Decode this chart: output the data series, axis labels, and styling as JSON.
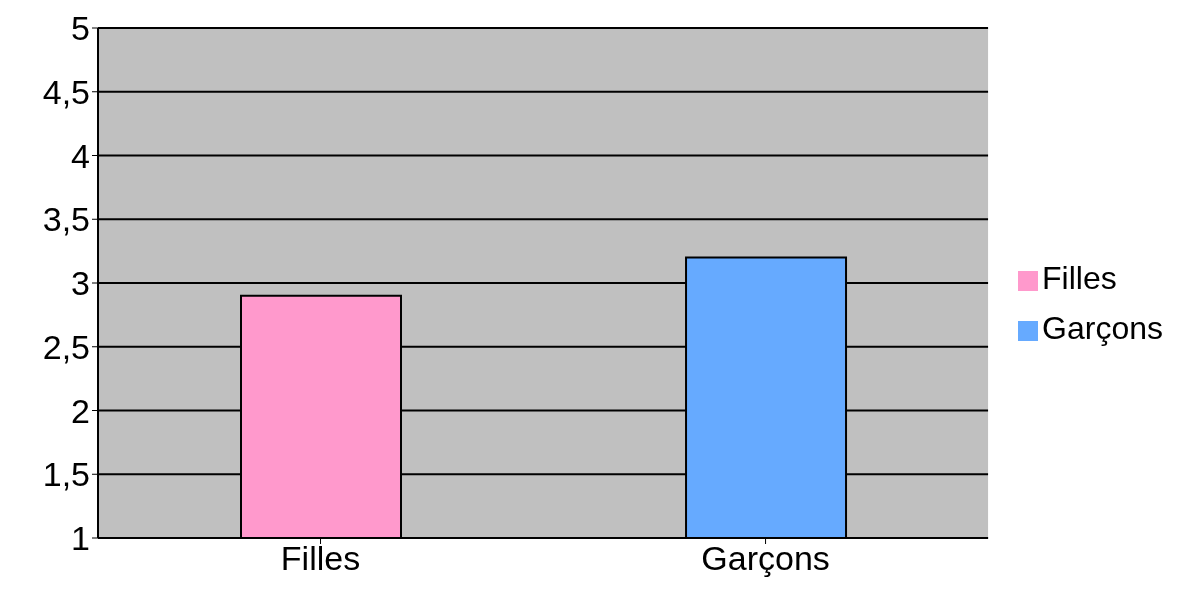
{
  "chart_data": {
    "type": "bar",
    "categories": [
      "Filles",
      "Garçons"
    ],
    "series": [
      {
        "name": "Filles",
        "color": "#ff99cc",
        "values": [
          2.9,
          null
        ]
      },
      {
        "name": "Garçons",
        "color": "#66aaff",
        "values": [
          null,
          3.2
        ]
      }
    ],
    "ylim": [
      1,
      5
    ],
    "yticks": [
      1,
      {
        "value": 1.5,
        "label": "1,5"
      },
      2,
      {
        "value": 2.5,
        "label": "2,5"
      },
      3,
      {
        "value": 3.5,
        "label": "3,5"
      },
      4,
      {
        "value": 4.5,
        "label": "4,5"
      },
      5
    ],
    "grid": "y",
    "legend": "right"
  }
}
